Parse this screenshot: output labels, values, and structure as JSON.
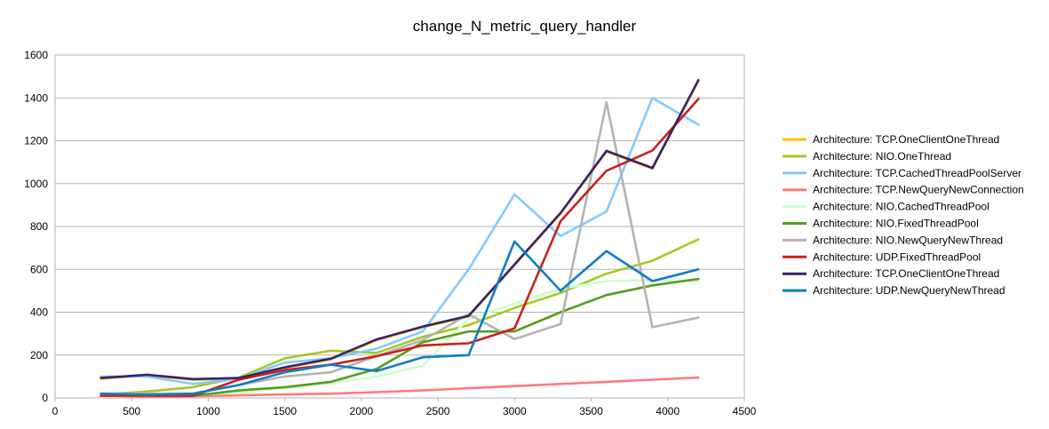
{
  "chart_data": {
    "type": "line",
    "title": "change_N_metric_query_handler",
    "xlabel": "",
    "ylabel": "",
    "xlim": [
      0,
      4500
    ],
    "ylim": [
      0,
      1600
    ],
    "xticks": [
      0,
      500,
      1000,
      1500,
      2000,
      2500,
      3000,
      3500,
      4000,
      4500
    ],
    "yticks": [
      0,
      200,
      400,
      600,
      800,
      1000,
      1200,
      1400,
      1600
    ],
    "grid": "horizontal",
    "legend_position": "right",
    "x": [
      300,
      600,
      900,
      1200,
      1500,
      1800,
      2100,
      2400,
      2700,
      3000,
      3300,
      3600,
      3900,
      4200
    ],
    "series": [
      {
        "name": "Architecture: TCP.OneClientOneThread",
        "color": "#ffbf00",
        "values": [
          90,
          105,
          85,
          90,
          140,
          180,
          270,
          330,
          380,
          620,
          860,
          1150,
          1070,
          1480
        ]
      },
      {
        "name": "Architecture: NIO.OneThread",
        "color": "#a5c91d",
        "values": [
          15,
          30,
          50,
          95,
          185,
          220,
          210,
          285,
          340,
          420,
          490,
          580,
          640,
          740
        ]
      },
      {
        "name": "Architecture: TCP.CachedThreadPoolServer",
        "color": "#83caff",
        "values": [
          100,
          100,
          65,
          90,
          165,
          185,
          230,
          310,
          600,
          950,
          755,
          870,
          1400,
          1275
        ]
      },
      {
        "name": "Architecture: TCP.NewQueryNewConnection",
        "color": "#ff7b7b",
        "values": [
          3,
          5,
          8,
          12,
          16,
          20,
          27,
          35,
          45,
          55,
          65,
          75,
          85,
          95
        ]
      },
      {
        "name": "Architecture: NIO.CachedThreadPool",
        "color": "#ccffcc",
        "values": [
          5,
          10,
          15,
          25,
          45,
          70,
          100,
          150,
          370,
          440,
          510,
          545,
          550,
          545
        ]
      },
      {
        "name": "Architecture: NIO.FixedThreadPool",
        "color": "#579d1c",
        "values": [
          10,
          12,
          10,
          35,
          50,
          75,
          135,
          260,
          310,
          310,
          400,
          480,
          525,
          555
        ]
      },
      {
        "name": "Architecture: NIO.NewQueryNewThread",
        "color": "#b3b3b3",
        "values": [
          20,
          20,
          20,
          60,
          100,
          120,
          195,
          270,
          390,
          275,
          345,
          1380,
          330,
          375
        ]
      },
      {
        "name": "Architecture: UDP.FixedThreadPool",
        "color": "#c9211e",
        "values": [
          10,
          10,
          10,
          85,
          130,
          155,
          195,
          245,
          255,
          325,
          825,
          1060,
          1155,
          1395
        ]
      },
      {
        "name": "Architecture: TCP.OneClientOneThread",
        "color": "#3a206e",
        "values": [
          93,
          108,
          88,
          93,
          143,
          183,
          273,
          333,
          383,
          623,
          863,
          1153,
          1073,
          1483
        ]
      },
      {
        "name": "Architecture: UDP.NewQueryNewThread",
        "color": "#0c7ec4",
        "values": [
          20,
          15,
          20,
          60,
          120,
          155,
          125,
          190,
          200,
          730,
          500,
          685,
          545,
          600
        ]
      }
    ]
  }
}
